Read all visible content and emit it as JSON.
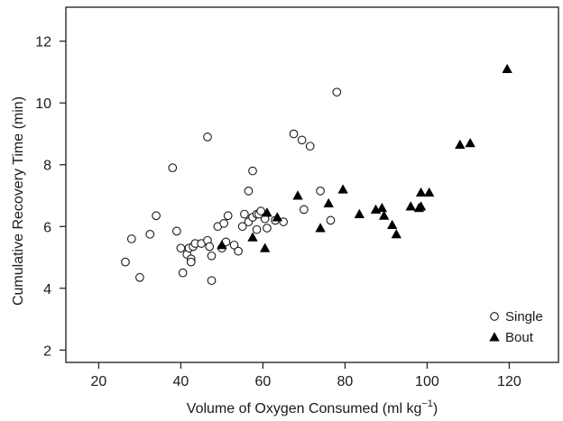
{
  "chart_data": {
    "type": "scatter",
    "xlabel": "Volume of Oxygen Consumed (ml kg",
    "xlabel_superscript": "−1",
    "xlabel_suffix": ")",
    "ylabel": "Cumulative Recovery Time (min)",
    "xlim": [
      12,
      132
    ],
    "ylim": [
      1.6,
      13.1
    ],
    "xticks": [
      20,
      40,
      60,
      80,
      100,
      120
    ],
    "yticks": [
      2,
      4,
      6,
      8,
      10,
      12
    ],
    "grid": false,
    "legend_position": "bottom-right",
    "series": [
      {
        "name": "Single",
        "marker": "open-circle",
        "color": "#1a1a1a",
        "points": [
          [
            26.5,
            4.85
          ],
          [
            28,
            5.6
          ],
          [
            30,
            4.35
          ],
          [
            32.5,
            5.75
          ],
          [
            34,
            6.35
          ],
          [
            38,
            7.9
          ],
          [
            39,
            5.85
          ],
          [
            40,
            5.3
          ],
          [
            40.5,
            4.5
          ],
          [
            41.5,
            5.1
          ],
          [
            42,
            5.3
          ],
          [
            42.5,
            4.95
          ],
          [
            42.5,
            4.85
          ],
          [
            43,
            5.35
          ],
          [
            43.5,
            5.45
          ],
          [
            45,
            5.45
          ],
          [
            46.5,
            8.9
          ],
          [
            46.5,
            5.55
          ],
          [
            47,
            5.35
          ],
          [
            47.5,
            5.05
          ],
          [
            47.5,
            4.25
          ],
          [
            49,
            6.0
          ],
          [
            50,
            5.3
          ],
          [
            50.5,
            6.1
          ],
          [
            51,
            5.5
          ],
          [
            51.5,
            6.35
          ],
          [
            53,
            5.4
          ],
          [
            54,
            5.2
          ],
          [
            55,
            6.0
          ],
          [
            55.5,
            6.4
          ],
          [
            56.5,
            7.15
          ],
          [
            56.5,
            6.15
          ],
          [
            57.5,
            7.8
          ],
          [
            57.5,
            6.3
          ],
          [
            58.5,
            6.4
          ],
          [
            58.5,
            5.9
          ],
          [
            59,
            6.4
          ],
          [
            59.5,
            6.5
          ],
          [
            60.5,
            6.25
          ],
          [
            61,
            5.95
          ],
          [
            63,
            6.2
          ],
          [
            65,
            6.15
          ],
          [
            67.5,
            9.0
          ],
          [
            69.5,
            8.8
          ],
          [
            70,
            6.55
          ],
          [
            71.5,
            8.6
          ],
          [
            74,
            7.15
          ],
          [
            76.5,
            6.2
          ],
          [
            78,
            10.35
          ]
        ]
      },
      {
        "name": "Bout",
        "marker": "filled-triangle",
        "color": "#000000",
        "points": [
          [
            50,
            5.4
          ],
          [
            57.5,
            5.65
          ],
          [
            60.5,
            5.3
          ],
          [
            61,
            6.45
          ],
          [
            63.5,
            6.3
          ],
          [
            68.5,
            7.0
          ],
          [
            74,
            5.95
          ],
          [
            76,
            6.75
          ],
          [
            79.5,
            7.2
          ],
          [
            83.5,
            6.4
          ],
          [
            87.5,
            6.55
          ],
          [
            89,
            6.6
          ],
          [
            89.5,
            6.35
          ],
          [
            91.5,
            6.05
          ],
          [
            92.5,
            5.75
          ],
          [
            96,
            6.65
          ],
          [
            98,
            6.6
          ],
          [
            98.5,
            6.65
          ],
          [
            98.5,
            7.1
          ],
          [
            100.5,
            7.1
          ],
          [
            108,
            8.65
          ],
          [
            110.5,
            8.7
          ],
          [
            119.5,
            11.1
          ]
        ]
      }
    ]
  }
}
